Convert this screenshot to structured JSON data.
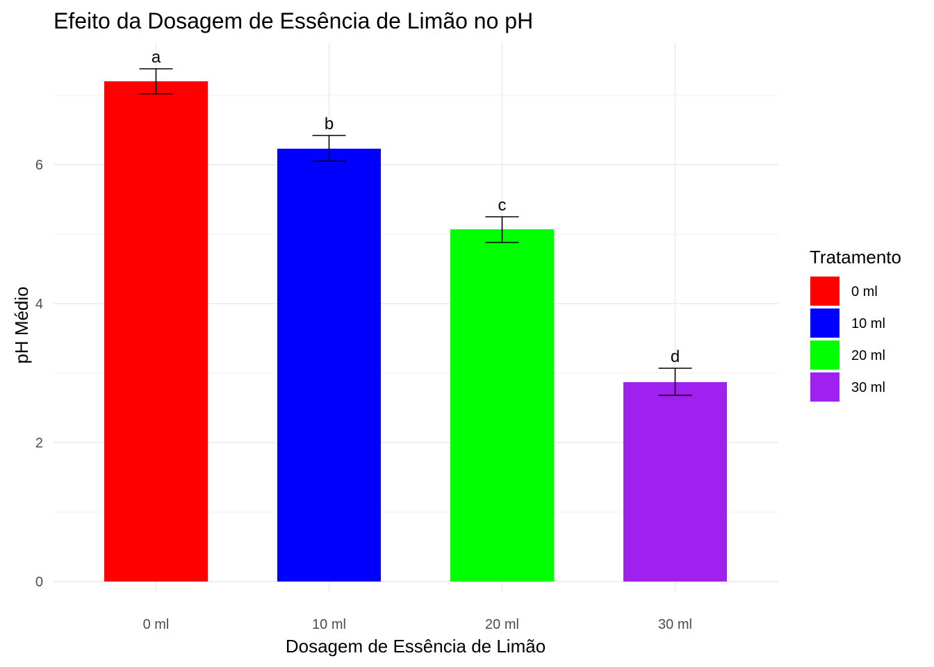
{
  "chart_data": {
    "type": "bar",
    "title": "Efeito da Dosagem de Essência de Limão no pH",
    "xlabel": "Dosagem de Essência de Limão",
    "ylabel": "pH Médio",
    "categories": [
      "0 ml",
      "10 ml",
      "20 ml",
      "30 ml"
    ],
    "values": [
      7.2,
      6.23,
      5.07,
      2.87
    ],
    "error_bars": [
      {
        "low": 7.02,
        "high": 7.38
      },
      {
        "low": 6.05,
        "high": 6.42
      },
      {
        "low": 4.88,
        "high": 5.25
      },
      {
        "low": 2.68,
        "high": 3.07
      }
    ],
    "significance_labels": [
      "a",
      "b",
      "c",
      "d"
    ],
    "colors": [
      "#ff0000",
      "#0000ff",
      "#00ff00",
      "#a020f0"
    ],
    "ylim": [
      0,
      7.8
    ],
    "yticks": [
      0,
      2,
      4,
      6
    ],
    "grid": true,
    "legend": {
      "title": "Tratamento",
      "placement": "right",
      "entries": [
        "0 ml",
        "10 ml",
        "20 ml",
        "30 ml"
      ]
    }
  }
}
